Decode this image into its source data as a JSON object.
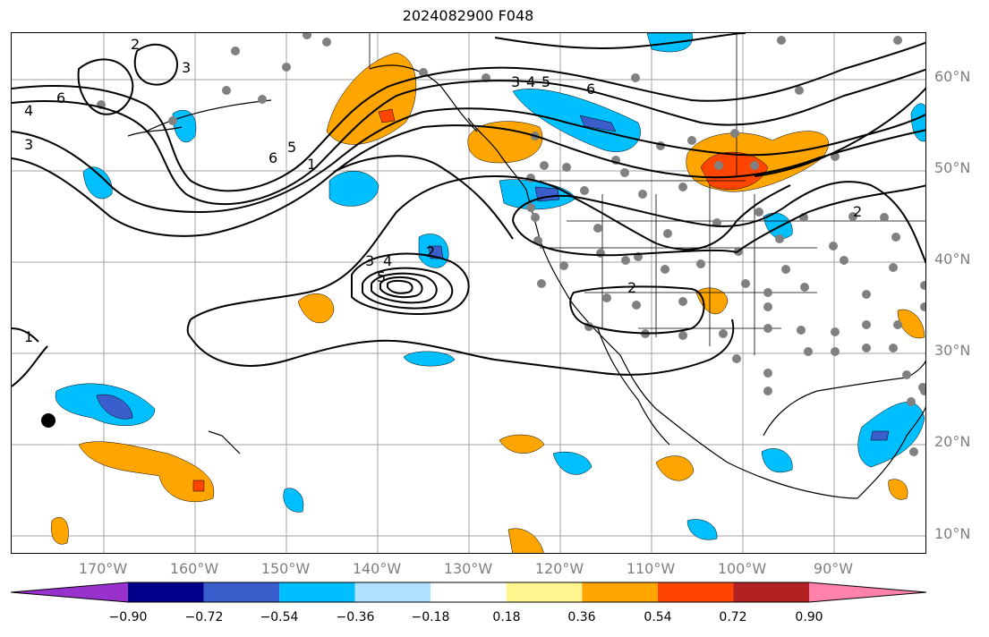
{
  "title": "2024082900 F048",
  "lat_labels": [
    "60°N",
    "50°N",
    "40°N",
    "30°N",
    "20°N",
    "10°N"
  ],
  "lon_labels": [
    "170°W",
    "160°W",
    "150°W",
    "140°W",
    "130°W",
    "120°W",
    "110°W",
    "100°W",
    "90°W"
  ],
  "contour_labels": [
    "6",
    "4",
    "3",
    "2",
    "3",
    "6",
    "5",
    "1",
    "3",
    "4",
    "5",
    "6",
    "2",
    "3",
    "4",
    "5",
    "2",
    "1",
    "2"
  ],
  "colorbar": {
    "tick_labels": [
      "−0.90",
      "−0.72",
      "−0.54",
      "−0.36",
      "−0.18",
      "0.18",
      "0.36",
      "0.54",
      "0.72",
      "0.90"
    ],
    "colors": [
      "#9932cc",
      "#00008b",
      "#3a5fcd",
      "#00bfff",
      "#b0e2ff",
      "#ffffff",
      "#fff68f",
      "#ffa500",
      "#ff4500",
      "#b22222",
      "#ff82ab"
    ]
  },
  "colors": {
    "contour": "#000000",
    "grid": "#a0a0a0",
    "coast": "#000000",
    "station": "#808080",
    "axis_label": "#7f7f7f"
  }
}
